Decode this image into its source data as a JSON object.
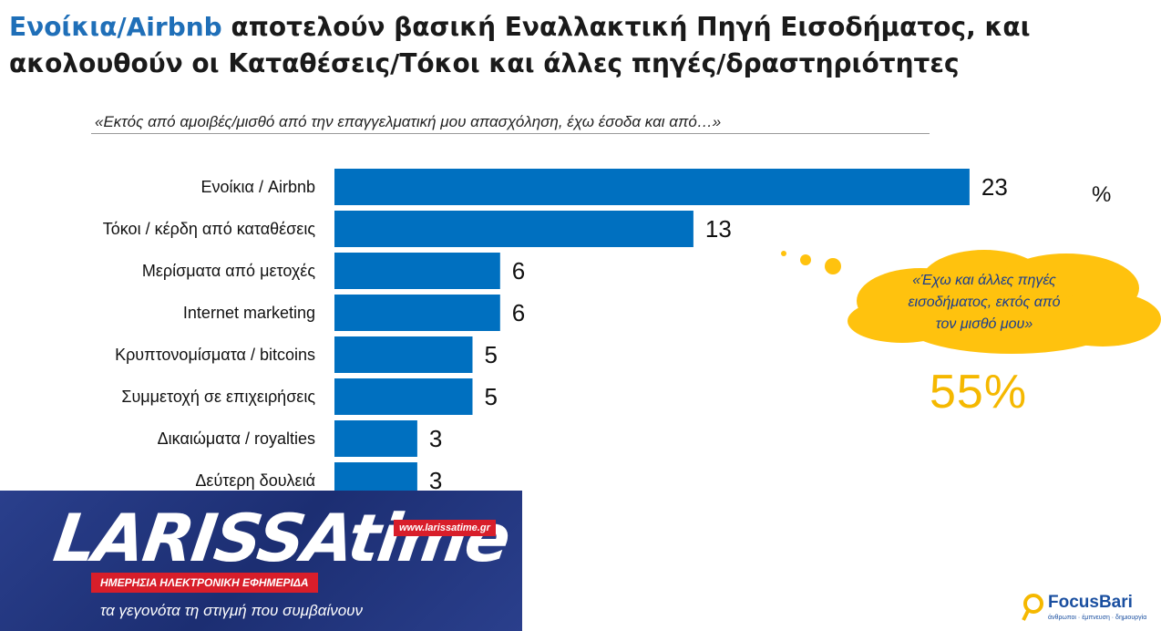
{
  "header": {
    "title_highlight": "Ενοίκια/Airbnb",
    "title_rest": " αποτελούν βασική Εναλλακτική Πηγή Εισοδήματος, και ακολουθούν οι Καταθέσεις/Τόκοι και άλλες πηγές/δραστηριότητες",
    "subtitle": "«Εκτός από αμοιβές/μισθό από την επαγγελματική μου απασχόληση, έχω έσοδα και από…»"
  },
  "chart_data": {
    "type": "bar",
    "orientation": "horizontal",
    "categories": [
      "Ενοίκια / Airbnb",
      "Τόκοι / κέρδη από καταθέσεις",
      "Μερίσματα από μετοχές",
      "Internet marketing",
      "Κρυπτονομίσματα / bitcoins",
      "Συμμετοχή σε επιχειρήσεις",
      "Δικαιώματα / royalties",
      "Δεύτερη δουλειά"
    ],
    "values": [
      23,
      13,
      6,
      6,
      5,
      5,
      3,
      3
    ],
    "unit": "%",
    "color": "#0070c0",
    "grid": false
  },
  "callout": {
    "text_lines": [
      "«Έχω και άλλες πηγές",
      "εισοδήματος, εκτός από",
      "τον μισθό μου»"
    ],
    "value": "55%",
    "cloud_color": "#ffc20e",
    "value_color": "#f5b800"
  },
  "banner": {
    "logo": "LARISSAtime",
    "url": "www.larissatime.gr",
    "daily": "ΗΜΕΡΗΣΙΑ ΗΛΕΚΤΡΟΝΙΚΗ ΕΦΗΜΕΡΙΔΑ",
    "tagline": "τα γεγονότα τη στιγμή που συμβαίνουν"
  },
  "brand": {
    "name": "FocusBari",
    "sub": "άνθρωποι · έμπνευση · δημιουργία"
  }
}
